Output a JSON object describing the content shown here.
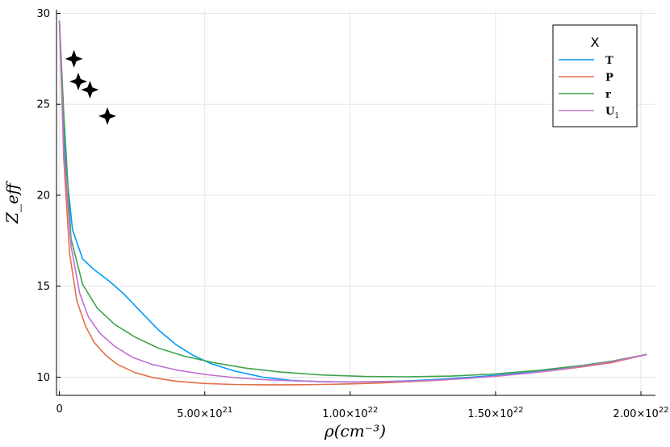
{
  "chart_data": {
    "type": "line",
    "title": "",
    "xlabel": "ρ(cm⁻³)",
    "ylabel": "Z_eff",
    "xlim": [
      -1e+20,
      2.05e+22
    ],
    "ylim": [
      9.0,
      30.2
    ],
    "grid": true,
    "legend": {
      "title": "X",
      "placement": "top-right"
    },
    "x_ticks": [
      {
        "value": 0,
        "label": "0",
        "exp": ""
      },
      {
        "value": 5e+21,
        "label": "5.00×10",
        "exp": "21"
      },
      {
        "value": 1e+22,
        "label": "1.00×10",
        "exp": "22"
      },
      {
        "value": 1.5e+22,
        "label": "1.50×10",
        "exp": "22"
      },
      {
        "value": 2e+22,
        "label": "2.00×10",
        "exp": "22"
      }
    ],
    "y_ticks": [
      {
        "value": 10,
        "label": "10"
      },
      {
        "value": 15,
        "label": "15"
      },
      {
        "value": 20,
        "label": "20"
      },
      {
        "value": 25,
        "label": "25"
      },
      {
        "value": 30,
        "label": "30"
      }
    ],
    "series": [
      {
        "name": "T",
        "sub": "",
        "color": "#009af9",
        "x": [
          0,
          2e+20,
          4.5e+20,
          8e+20,
          1.2e+21,
          1.7e+21,
          2.2e+21,
          2.8e+21,
          3.4e+21,
          4e+21,
          4.6e+21,
          5.2e+21,
          6e+21,
          7e+21,
          8e+21,
          9e+21,
          1e+22,
          1.1e+22,
          1.2e+22,
          1.3e+22,
          1.4e+22,
          1.5e+22,
          1.6e+22,
          1.7e+22,
          1.8e+22,
          1.9e+22,
          2.02e+22
        ],
        "y": [
          29.6,
          22.0,
          18.1,
          16.5,
          15.9,
          15.3,
          14.6,
          13.6,
          12.6,
          11.8,
          11.2,
          10.75,
          10.35,
          10.0,
          9.82,
          9.75,
          9.73,
          9.75,
          9.8,
          9.88,
          9.98,
          10.1,
          10.24,
          10.4,
          10.6,
          10.85,
          11.25
        ]
      },
      {
        "name": "P",
        "sub": "",
        "color": "#e26f46",
        "x": [
          0,
          1.5e+20,
          3.5e+20,
          6e+20,
          9e+20,
          1.2e+21,
          1.6e+21,
          2e+21,
          2.6e+21,
          3.2e+21,
          4e+21,
          5e+21,
          6e+21,
          7e+21,
          8e+21,
          9e+21,
          1e+22,
          1.1e+22,
          1.2e+22,
          1.3e+22,
          1.4e+22,
          1.5e+22,
          1.6e+22,
          1.7e+22,
          1.8e+22,
          1.9e+22,
          2.02e+22
        ],
        "y": [
          29.6,
          22.0,
          16.8,
          14.2,
          12.8,
          11.9,
          11.2,
          10.7,
          10.25,
          9.98,
          9.78,
          9.65,
          9.6,
          9.58,
          9.58,
          9.6,
          9.63,
          9.68,
          9.75,
          9.83,
          9.93,
          10.05,
          10.2,
          10.37,
          10.57,
          10.8,
          11.25
        ]
      },
      {
        "name": "r",
        "sub": "",
        "color": "#3ea44e",
        "x": [
          0,
          1.5e+20,
          4e+20,
          8e+20,
          1.3e+21,
          1.9e+21,
          2.6e+21,
          3.4e+21,
          4.3e+21,
          5.3e+21,
          6.4e+21,
          7.6e+21,
          9e+21,
          1.05e+22,
          1.2e+22,
          1.35e+22,
          1.5e+22,
          1.65e+22,
          1.8e+22,
          1.9e+22,
          2.02e+22
        ],
        "y": [
          29.6,
          24.5,
          17.6,
          15.1,
          13.8,
          12.9,
          12.2,
          11.6,
          11.15,
          10.8,
          10.5,
          10.28,
          10.12,
          10.04,
          10.02,
          10.06,
          10.18,
          10.38,
          10.65,
          10.88,
          11.25
        ]
      },
      {
        "name": "U",
        "sub": "1",
        "color": "#c270d2",
        "x": [
          0,
          1.5e+20,
          4e+20,
          7e+20,
          1e+21,
          1.4e+21,
          1.9e+21,
          2.5e+21,
          3.2e+21,
          4e+21,
          5e+21,
          6e+21,
          7e+21,
          8e+21,
          9e+21,
          1e+22,
          1.1e+22,
          1.2e+22,
          1.3e+22,
          1.4e+22,
          1.5e+22,
          1.6e+22,
          1.7e+22,
          1.8e+22,
          1.9e+22,
          2.02e+22
        ],
        "y": [
          29.6,
          22.5,
          17.2,
          14.6,
          13.3,
          12.4,
          11.7,
          11.1,
          10.7,
          10.4,
          10.15,
          9.98,
          9.87,
          9.8,
          9.76,
          9.74,
          9.75,
          9.78,
          9.84,
          9.93,
          10.05,
          10.2,
          10.38,
          10.6,
          10.85,
          11.25
        ]
      }
    ],
    "markers": {
      "type": "scatter",
      "shape": "four-point-star",
      "color": "#000000",
      "x": [
        5e+20,
        6.5e+20,
        1.05e+21,
        1.65e+21
      ],
      "y": [
        27.5,
        26.25,
        25.8,
        24.35
      ]
    }
  }
}
